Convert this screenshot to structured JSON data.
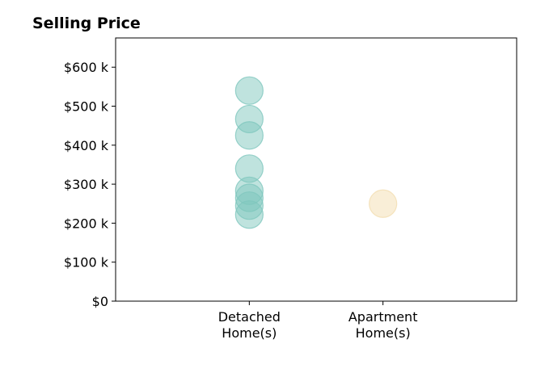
{
  "chart_data": {
    "type": "scatter",
    "title": "Selling Price",
    "xlabel": "",
    "ylabel": "",
    "categories": [
      [
        "Detached",
        "Home(s)"
      ],
      [
        "Apartment",
        "Home(s)"
      ]
    ],
    "x_range": [
      -1,
      2
    ],
    "yticks": [
      {
        "value": 0,
        "label": "$0"
      },
      {
        "value": 100000,
        "label": "$100 k"
      },
      {
        "value": 200000,
        "label": "$200 k"
      },
      {
        "value": 300000,
        "label": "$300 k"
      },
      {
        "value": 400000,
        "label": "$400 k"
      },
      {
        "value": 500000,
        "label": "$500 k"
      },
      {
        "value": 600000,
        "label": "$600 k"
      }
    ],
    "ylim": [
      0,
      675000
    ],
    "grid": false,
    "series": [
      {
        "category_index": 0,
        "color": "#7fc7be",
        "values": [
          540000,
          467000,
          425000,
          340000,
          283000,
          265000,
          245000,
          222000
        ]
      },
      {
        "category_index": 1,
        "color": "#f3ddb0",
        "values": [
          250000
        ]
      }
    ]
  }
}
